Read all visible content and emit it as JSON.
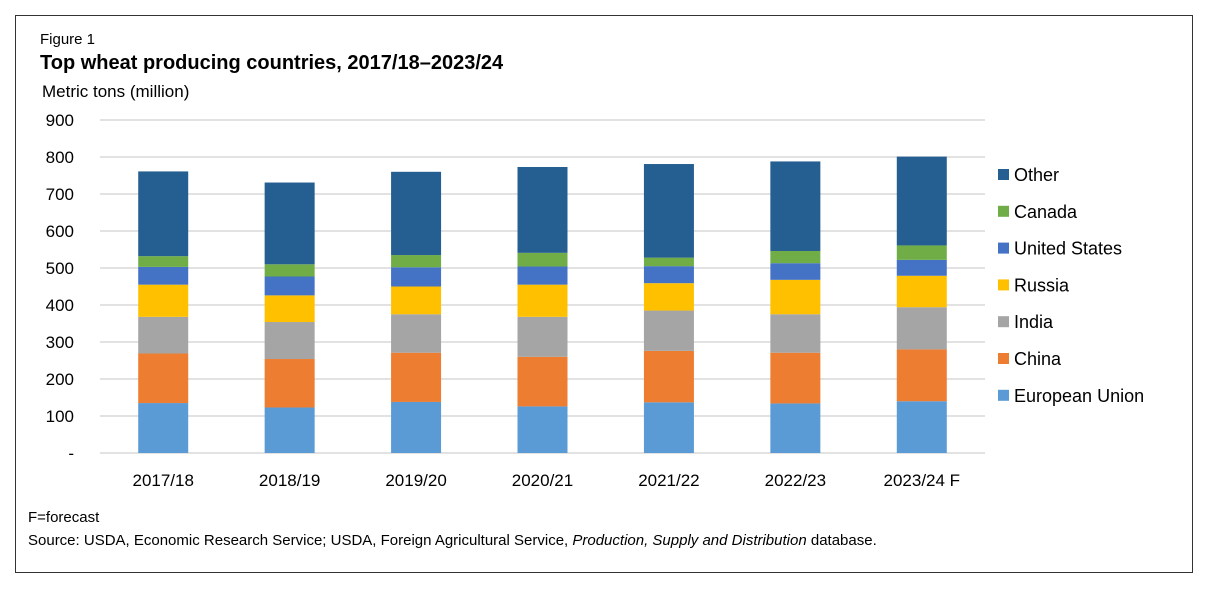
{
  "figure_label": "Figure 1",
  "chart_data": {
    "type": "bar",
    "stacked": true,
    "title": "Top wheat producing countries, 2017/18–2023/24",
    "ylabel": "Metric tons (million)",
    "xlabel": "",
    "ylim": [
      0,
      900
    ],
    "yticks": [
      "-",
      "100",
      "200",
      "300",
      "400",
      "500",
      "600",
      "700",
      "800",
      "900"
    ],
    "grid": true,
    "legend_position": "right",
    "categories": [
      "2017/18",
      "2018/19",
      "2019/20",
      "2020/21",
      "2021/22",
      "2022/23",
      "2023/24 F"
    ],
    "series": [
      {
        "name": "European Union",
        "color": "#5b9bd5",
        "values": [
          135,
          123,
          138,
          126,
          137,
          134,
          140
        ]
      },
      {
        "name": "China",
        "color": "#ed7d31",
        "values": [
          134,
          131,
          133,
          134,
          139,
          137,
          140
        ]
      },
      {
        "name": "India",
        "color": "#a5a5a5",
        "values": [
          99,
          100,
          104,
          108,
          109,
          104,
          114
        ]
      },
      {
        "name": "Russia",
        "color": "#ffc000",
        "values": [
          87,
          72,
          75,
          87,
          74,
          93,
          85
        ]
      },
      {
        "name": "United States",
        "color": "#4472c4",
        "values": [
          48,
          51,
          52,
          49,
          46,
          45,
          43
        ]
      },
      {
        "name": "Canada",
        "color": "#70ad47",
        "values": [
          29,
          33,
          33,
          37,
          23,
          33,
          39
        ]
      },
      {
        "name": "Other",
        "color": "#255e91",
        "values": [
          229,
          221,
          225,
          232,
          253,
          242,
          240
        ]
      }
    ]
  },
  "notes": {
    "forecast": "F=forecast",
    "source_prefix": "Source: USDA, Economic Research Service; USDA, Foreign Agricultural Service, ",
    "source_italic": "Production, Supply and Distribution",
    "source_suffix": " database."
  }
}
